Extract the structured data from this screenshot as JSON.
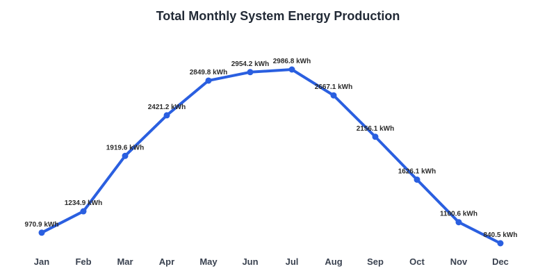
{
  "chart_data": {
    "type": "line",
    "title": "Total Monthly System Energy Production",
    "xlabel": "",
    "ylabel": "",
    "categories": [
      "Jan",
      "Feb",
      "Mar",
      "Apr",
      "May",
      "Jun",
      "Jul",
      "Aug",
      "Sep",
      "Oct",
      "Nov",
      "Dec"
    ],
    "series": [
      {
        "values": [
          970.9,
          1234.9,
          1919.6,
          2421.2,
          2849.8,
          2954.2,
          2986.8,
          2667.1,
          2156.1,
          1626.1,
          1100.6,
          840.5
        ],
        "data_labels": [
          "970.9 kWh",
          "1234.9 kWh",
          "1919.6 kWh",
          "2421.2 kWh",
          "2849.8 kWh",
          "2954.2 kWh",
          "2986.8 kWh",
          "2667.1 kWh",
          "2156.1 kWh",
          "1626.1 kWh",
          "1100.6 kWh",
          "840.5 kWh"
        ],
        "color": "#2a5fe0"
      }
    ],
    "ylim": [
      840.5,
      2986.8
    ],
    "grid": false,
    "legend": "none",
    "y_axis_visible": false
  }
}
